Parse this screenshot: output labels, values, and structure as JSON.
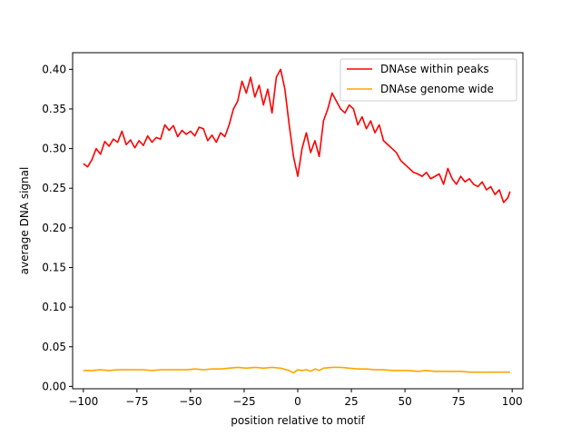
{
  "chart_data": {
    "type": "line",
    "title": "",
    "xlabel": "position relative to motif",
    "ylabel": "average DNA signal",
    "xlim": [
      -105,
      105
    ],
    "ylim": [
      -0.003,
      0.421
    ],
    "grid": false,
    "legend_position": "top-right",
    "xticks": [
      -100,
      -75,
      -50,
      -25,
      0,
      25,
      50,
      75,
      100
    ],
    "xtick_labels": [
      "−100",
      "−75",
      "−50",
      "−25",
      "0",
      "25",
      "50",
      "75",
      "100"
    ],
    "yticks": [
      0.0,
      0.05,
      0.1,
      0.15,
      0.2,
      0.25,
      0.3,
      0.35,
      0.4
    ],
    "ytick_labels": [
      "0.00",
      "0.05",
      "0.10",
      "0.15",
      "0.20",
      "0.25",
      "0.30",
      "0.35",
      "0.40"
    ],
    "series": [
      {
        "name": "DNAse within peaks",
        "color": "#ff0000",
        "x": [
          -100,
          -98,
          -96,
          -94,
          -92,
          -90,
          -88,
          -86,
          -84,
          -82,
          -80,
          -78,
          -76,
          -74,
          -72,
          -70,
          -68,
          -66,
          -64,
          -62,
          -60,
          -58,
          -56,
          -54,
          -52,
          -50,
          -48,
          -46,
          -44,
          -42,
          -40,
          -38,
          -36,
          -34,
          -32,
          -30,
          -28,
          -26,
          -24,
          -22,
          -20,
          -18,
          -16,
          -14,
          -12,
          -10,
          -8,
          -6,
          -4,
          -2,
          0,
          2,
          4,
          6,
          8,
          10,
          12,
          14,
          16,
          18,
          20,
          22,
          24,
          26,
          28,
          30,
          32,
          34,
          36,
          38,
          40,
          42,
          44,
          46,
          48,
          50,
          52,
          54,
          56,
          58,
          60,
          62,
          64,
          66,
          68,
          70,
          72,
          74,
          76,
          78,
          80,
          82,
          84,
          86,
          88,
          90,
          92,
          94,
          96,
          98,
          99
        ],
        "y": [
          0.281,
          0.277,
          0.286,
          0.3,
          0.293,
          0.309,
          0.303,
          0.312,
          0.308,
          0.322,
          0.305,
          0.311,
          0.301,
          0.31,
          0.304,
          0.316,
          0.308,
          0.314,
          0.312,
          0.33,
          0.323,
          0.329,
          0.315,
          0.323,
          0.318,
          0.322,
          0.316,
          0.327,
          0.325,
          0.31,
          0.317,
          0.308,
          0.32,
          0.315,
          0.33,
          0.35,
          0.36,
          0.385,
          0.37,
          0.39,
          0.365,
          0.38,
          0.355,
          0.375,
          0.345,
          0.39,
          0.4,
          0.375,
          0.33,
          0.29,
          0.265,
          0.3,
          0.32,
          0.295,
          0.31,
          0.29,
          0.335,
          0.35,
          0.37,
          0.36,
          0.35,
          0.345,
          0.355,
          0.35,
          0.33,
          0.34,
          0.325,
          0.335,
          0.32,
          0.33,
          0.31,
          0.305,
          0.3,
          0.295,
          0.285,
          0.28,
          0.275,
          0.27,
          0.268,
          0.265,
          0.27,
          0.262,
          0.265,
          0.268,
          0.255,
          0.275,
          0.262,
          0.255,
          0.265,
          0.258,
          0.262,
          0.255,
          0.252,
          0.258,
          0.248,
          0.252,
          0.242,
          0.248,
          0.232,
          0.238,
          0.246
        ]
      },
      {
        "name": "DNAse genome wide",
        "color": "#ffa500",
        "x": [
          -100,
          -96,
          -92,
          -88,
          -84,
          -80,
          -76,
          -72,
          -68,
          -64,
          -60,
          -56,
          -52,
          -48,
          -44,
          -40,
          -36,
          -32,
          -28,
          -24,
          -20,
          -16,
          -12,
          -8,
          -4,
          -2,
          0,
          2,
          4,
          6,
          8,
          10,
          12,
          16,
          20,
          24,
          28,
          32,
          36,
          40,
          44,
          48,
          52,
          56,
          60,
          64,
          68,
          72,
          76,
          80,
          84,
          88,
          92,
          96,
          99
        ],
        "y": [
          0.02,
          0.02,
          0.021,
          0.02,
          0.021,
          0.021,
          0.021,
          0.021,
          0.02,
          0.021,
          0.021,
          0.021,
          0.021,
          0.022,
          0.021,
          0.022,
          0.022,
          0.023,
          0.024,
          0.023,
          0.024,
          0.023,
          0.024,
          0.023,
          0.02,
          0.017,
          0.021,
          0.02,
          0.021,
          0.019,
          0.022,
          0.02,
          0.023,
          0.024,
          0.024,
          0.023,
          0.022,
          0.022,
          0.021,
          0.021,
          0.02,
          0.02,
          0.02,
          0.019,
          0.02,
          0.019,
          0.019,
          0.019,
          0.019,
          0.018,
          0.018,
          0.018,
          0.018,
          0.018,
          0.018
        ]
      }
    ]
  }
}
